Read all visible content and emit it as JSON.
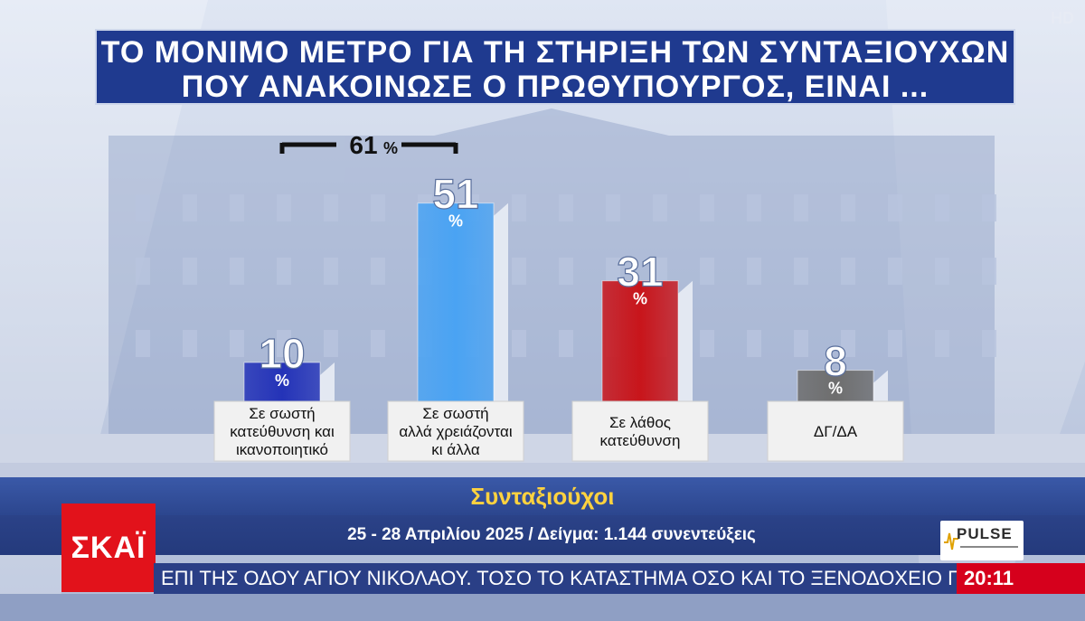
{
  "title": "ΤΟ ΜΟΝΙΜΟ ΜΕΤΡΟ ΓΙΑ ΤΗ ΣΤΗΡΙΞΗ ΤΩΝ ΣΥΝΤΑΞΙΟΥΧΩΝ ΠΟΥ ΑΝΑΚΟΙΝΩΣΕ Ο ΠΡΩΘΥΠΟΥΡΓΟΣ, ΕΙΝΑΙ ...",
  "title_line1": "ΤΟ ΜΟΝΙΜΟ ΜΕΤΡΟ ΓΙΑ ΤΗ ΣΤΗΡΙΞΗ ΤΩΝ ΣΥΝΤΑΞΙΟΥΧΩΝ",
  "title_line2": "ΠΟΥ ΑΝΑΚΟΙΝΩΣΕ Ο ΠΡΩΘΥΠΟΥΡΓΟΣ, ΕΙΝΑΙ ...",
  "hd_badge": "HD",
  "chart_data": {
    "type": "bar",
    "categories": [
      [
        "Σε σωστή",
        "κατεύθυνση και",
        "ικανοποιητικό"
      ],
      [
        "Σε σωστή",
        "αλλά χρειάζονται",
        "κι άλλα"
      ],
      [
        "Σε λάθος",
        "κατεύθυνση"
      ],
      [
        "ΔΓ/ΔΑ"
      ]
    ],
    "values": [
      10,
      51,
      31,
      8
    ],
    "value_labels": [
      "10",
      "51",
      "31",
      "8"
    ],
    "unit": "%",
    "colors": [
      "#2433b8",
      "#4aa3f3",
      "#c8151b",
      "#6e6e6e"
    ],
    "bracket": {
      "label": "61",
      "unit": "%",
      "spans": [
        0,
        1
      ]
    }
  },
  "audience": "Συνταξιούχοι",
  "survey_info": "25 - 28 Απριλίου 2025 / Δείγμα: 1.144 συνεντεύξεις",
  "ticker": "ΕΠΙ ΤΗΣ ΟΔΟΥ ΑΓΙΟΥ ΝΙΚΟΛΑΟΥ. ΤΟΣΟ ΤΟ ΚΑΤΑΣΤΗΜΑ ΟΣΟ ΚΑΙ ΤΟ ΞΕΝΟΔΟΧΕΙΟ ΠΟΥ ΒΡΙΣΚ",
  "clock": "20:11",
  "logos": {
    "channel": "ΣΚΑΪ",
    "pollster": "PULSE"
  }
}
